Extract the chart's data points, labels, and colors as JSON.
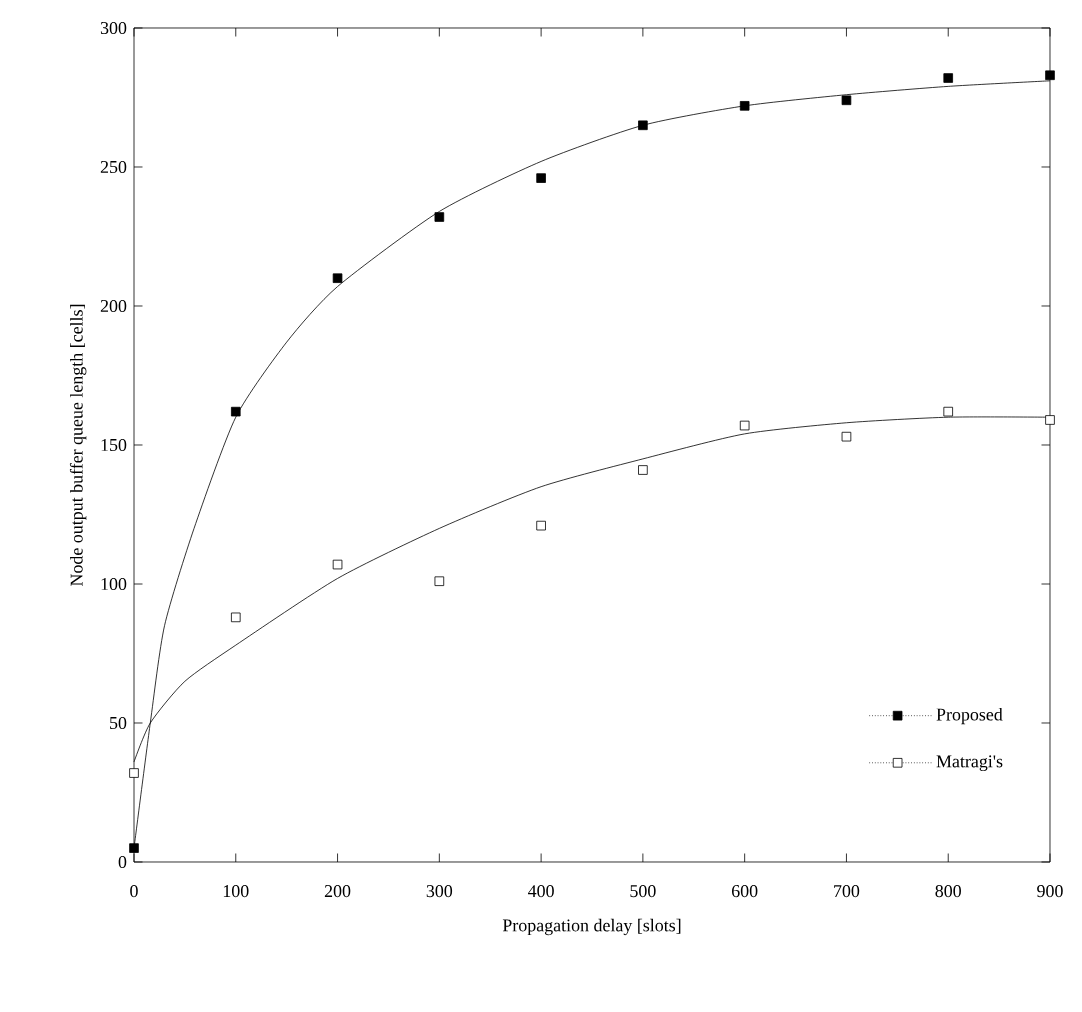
{
  "chart_data": {
    "type": "scatter",
    "xlabel": "Propagation delay [slots]",
    "ylabel": "Node output buffer queue length [cells]",
    "x": [
      0,
      100,
      200,
      300,
      400,
      500,
      600,
      700,
      800,
      900
    ],
    "series": [
      {
        "name": "Proposed",
        "color": "#000000",
        "marker": "square",
        "values": [
          5,
          162,
          210,
          232,
          246,
          265,
          272,
          274,
          282,
          283
        ]
      },
      {
        "name": "Matragi's",
        "color": "#ffffff",
        "marker": "square",
        "values": [
          32,
          88,
          107,
          101,
          121,
          141,
          157,
          153,
          162,
          159
        ]
      },
      {
        "type": "line",
        "color": "#000000",
        "x": [
          0,
          16,
          30,
          59,
          100,
          150,
          200,
          300,
          400,
          500,
          600,
          700,
          800,
          900
        ],
        "values": [
          5,
          50,
          85,
          120,
          160,
          187,
          207,
          234,
          252,
          265,
          272,
          276,
          279,
          281
        ]
      },
      {
        "type": "line",
        "color": "#000000",
        "x": [
          0,
          16,
          50,
          100,
          200,
          300,
          400,
          500,
          600,
          700,
          800,
          900
        ],
        "values": [
          36,
          50,
          65,
          78,
          102,
          120,
          135,
          145,
          154,
          158,
          160,
          160
        ]
      }
    ],
    "xlim": [
      0,
      900
    ],
    "ylim": [
      0,
      300
    ],
    "xticks": [
      0,
      100,
      200,
      300,
      400,
      500,
      600,
      700,
      800,
      900
    ],
    "yticks": [
      0,
      50,
      100,
      150,
      200,
      250,
      300
    ],
    "grid": false,
    "legend": "bottom right",
    "line_style": "solid"
  }
}
